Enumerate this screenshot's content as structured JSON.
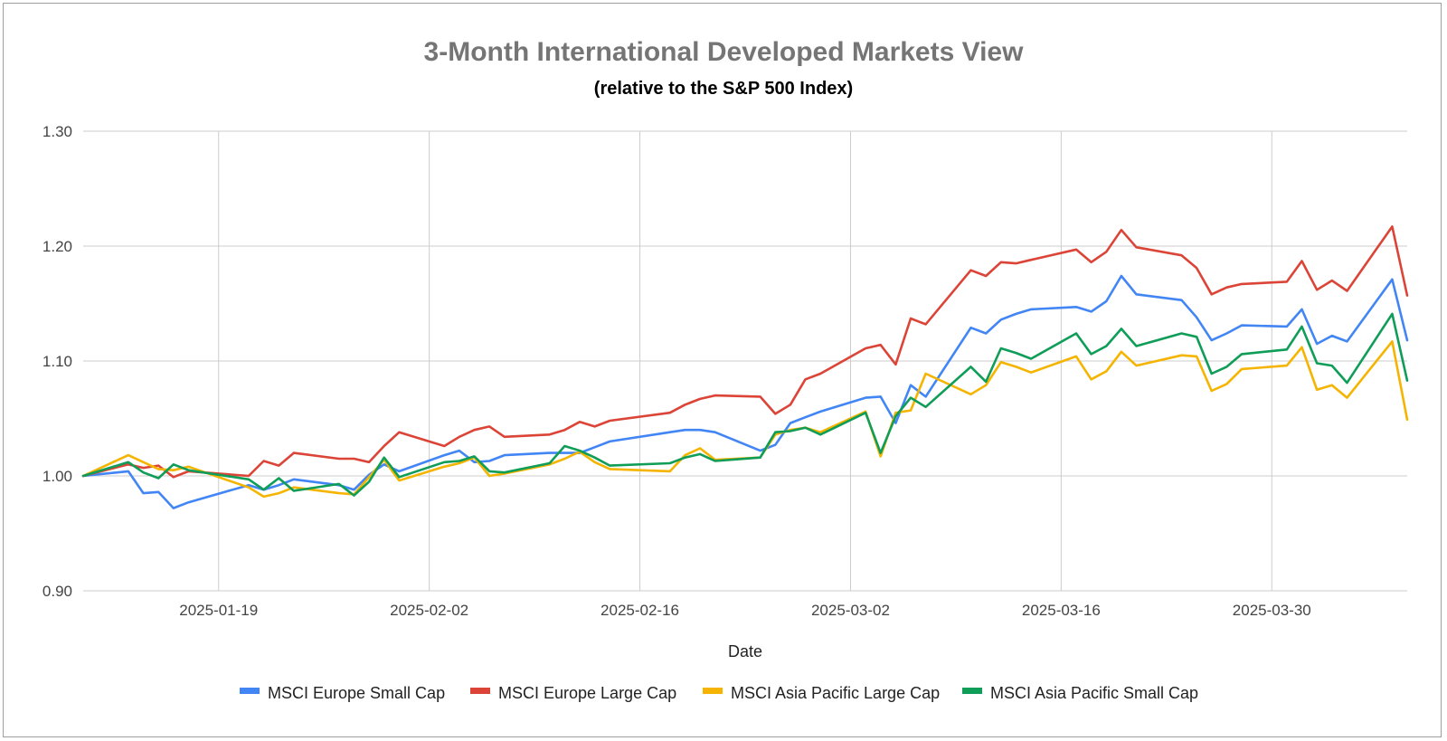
{
  "chart_data": {
    "type": "line",
    "title": "3-Month International Developed Markets View",
    "subtitle": "(relative to the S&P 500 Index)",
    "xlabel": "Date",
    "ylabel": "",
    "x_start": "2025-01-10",
    "x_end": "2025-04-08",
    "ylim": [
      0.9,
      1.3
    ],
    "y_ticks": [
      "0.90",
      "1.00",
      "1.10",
      "1.20",
      "1.30"
    ],
    "x_ticks": [
      "2025-01-19",
      "2025-02-02",
      "2025-02-16",
      "2025-03-02",
      "2025-03-16",
      "2025-03-30"
    ],
    "grid": true,
    "legend_position": "bottom",
    "dates": [
      "2025-01-10",
      "2025-01-13",
      "2025-01-14",
      "2025-01-15",
      "2025-01-16",
      "2025-01-17",
      "2025-01-21",
      "2025-01-22",
      "2025-01-23",
      "2025-01-24",
      "2025-01-27",
      "2025-01-28",
      "2025-01-29",
      "2025-01-30",
      "2025-01-31",
      "2025-02-03",
      "2025-02-04",
      "2025-02-05",
      "2025-02-06",
      "2025-02-07",
      "2025-02-10",
      "2025-02-11",
      "2025-02-12",
      "2025-02-13",
      "2025-02-14",
      "2025-02-18",
      "2025-02-19",
      "2025-02-20",
      "2025-02-21",
      "2025-02-24",
      "2025-02-25",
      "2025-02-26",
      "2025-02-27",
      "2025-02-28",
      "2025-03-03",
      "2025-03-04",
      "2025-03-05",
      "2025-03-06",
      "2025-03-07",
      "2025-03-10",
      "2025-03-11",
      "2025-03-12",
      "2025-03-13",
      "2025-03-14",
      "2025-03-17",
      "2025-03-18",
      "2025-03-19",
      "2025-03-20",
      "2025-03-21",
      "2025-03-24",
      "2025-03-25",
      "2025-03-26",
      "2025-03-27",
      "2025-03-28",
      "2025-03-31",
      "2025-04-01",
      "2025-04-02",
      "2025-04-03",
      "2025-04-04",
      "2025-04-07",
      "2025-04-08"
    ],
    "series": [
      {
        "name": "MSCI Europe Small Cap",
        "color": "#4285f4",
        "values": [
          1.0,
          1.004,
          0.985,
          0.986,
          0.972,
          0.977,
          0.992,
          0.988,
          0.992,
          0.997,
          0.992,
          0.988,
          1.001,
          1.01,
          1.004,
          1.018,
          1.022,
          1.012,
          1.013,
          1.018,
          1.02,
          1.02,
          1.02,
          1.025,
          1.03,
          1.038,
          1.04,
          1.04,
          1.038,
          1.022,
          1.027,
          1.046,
          1.051,
          1.056,
          1.068,
          1.069,
          1.046,
          1.079,
          1.069,
          1.129,
          1.124,
          1.136,
          1.141,
          1.145,
          1.147,
          1.143,
          1.152,
          1.174,
          1.158,
          1.153,
          1.138,
          1.118,
          1.124,
          1.131,
          1.13,
          1.145,
          1.115,
          1.122,
          1.117,
          1.171,
          1.118
        ]
      },
      {
        "name": "MSCI Europe Large Cap",
        "color": "#db4437",
        "values": [
          1.0,
          1.01,
          1.007,
          1.009,
          0.999,
          1.004,
          1.0,
          1.013,
          1.009,
          1.02,
          1.015,
          1.015,
          1.012,
          1.026,
          1.038,
          1.026,
          1.034,
          1.04,
          1.043,
          1.034,
          1.036,
          1.04,
          1.047,
          1.043,
          1.048,
          1.055,
          1.062,
          1.067,
          1.07,
          1.069,
          1.054,
          1.062,
          1.084,
          1.089,
          1.111,
          1.114,
          1.097,
          1.137,
          1.132,
          1.179,
          1.174,
          1.186,
          1.185,
          1.188,
          1.197,
          1.186,
          1.195,
          1.214,
          1.199,
          1.192,
          1.181,
          1.158,
          1.164,
          1.167,
          1.169,
          1.187,
          1.162,
          1.17,
          1.161,
          1.217,
          1.157
        ]
      },
      {
        "name": "MSCI Asia Pacific Large Cap",
        "color": "#f4b400",
        "values": [
          1.0,
          1.018,
          1.012,
          1.006,
          1.005,
          1.008,
          0.99,
          0.982,
          0.985,
          0.99,
          0.985,
          0.984,
          0.999,
          1.014,
          0.996,
          1.008,
          1.011,
          1.016,
          1.0,
          1.002,
          1.01,
          1.015,
          1.021,
          1.012,
          1.006,
          1.004,
          1.018,
          1.024,
          1.014,
          1.016,
          1.036,
          1.04,
          1.042,
          1.038,
          1.056,
          1.017,
          1.055,
          1.057,
          1.089,
          1.071,
          1.079,
          1.099,
          1.095,
          1.09,
          1.104,
          1.084,
          1.091,
          1.108,
          1.096,
          1.105,
          1.104,
          1.074,
          1.08,
          1.093,
          1.096,
          1.112,
          1.075,
          1.079,
          1.068,
          1.117,
          1.049
        ]
      },
      {
        "name": "MSCI Asia Pacific Small Cap",
        "color": "#0f9d58",
        "values": [
          1.0,
          1.012,
          1.003,
          0.998,
          1.01,
          1.005,
          0.997,
          0.988,
          0.998,
          0.987,
          0.993,
          0.983,
          0.995,
          1.016,
          0.999,
          1.012,
          1.013,
          1.017,
          1.004,
          1.003,
          1.011,
          1.026,
          1.022,
          1.016,
          1.009,
          1.011,
          1.016,
          1.019,
          1.013,
          1.016,
          1.038,
          1.039,
          1.042,
          1.036,
          1.055,
          1.02,
          1.052,
          1.068,
          1.06,
          1.095,
          1.082,
          1.111,
          1.107,
          1.102,
          1.124,
          1.106,
          1.113,
          1.128,
          1.113,
          1.124,
          1.121,
          1.089,
          1.095,
          1.106,
          1.11,
          1.13,
          1.098,
          1.096,
          1.081,
          1.141,
          1.083
        ]
      }
    ]
  }
}
